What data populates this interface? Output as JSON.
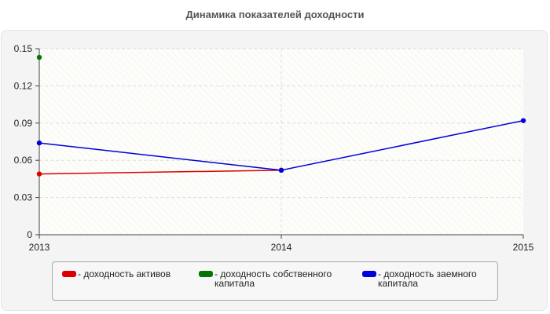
{
  "chart_data": {
    "type": "line",
    "title": "Динамика показателей доходности",
    "xlabel": "",
    "ylabel": "",
    "categories": [
      "2013",
      "2014",
      "2015"
    ],
    "ylim": [
      0,
      0.15
    ],
    "yticks": [
      "0",
      "0.03",
      "0.06",
      "0.09",
      "0.12",
      "0.15"
    ],
    "grid": true,
    "legend_position": "bottom",
    "series": [
      {
        "name": "доходность активов",
        "color": "#dd0000",
        "values": [
          0.049,
          0.052,
          null
        ]
      },
      {
        "name": "доходность собственного капитала",
        "color": "#007700",
        "values": [
          0.143,
          null,
          null
        ]
      },
      {
        "name": "доходность заемного капитала",
        "color": "#0000dd",
        "values": [
          0.074,
          0.052,
          0.092
        ]
      }
    ]
  },
  "legend": {
    "items": [
      {
        "label": "- доходность активов",
        "color": "#dd0000"
      },
      {
        "label": "- доходность собственного капитала",
        "color": "#007700"
      },
      {
        "label": "- доходность заемного капитала",
        "color": "#0000dd"
      }
    ]
  }
}
